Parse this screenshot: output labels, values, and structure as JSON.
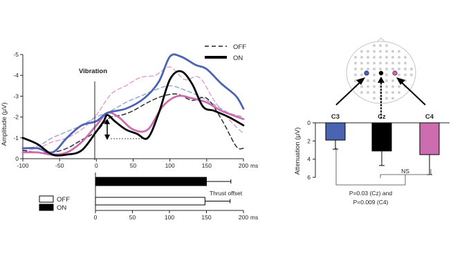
{
  "chart_data": [
    {
      "type": "line",
      "ylabel": "Amplitude (μV)",
      "x_unit": "ms",
      "xlim": [
        -100,
        200
      ],
      "ylim": [
        0,
        -5
      ],
      "y_inverted": true,
      "x_ticks": [
        "-100",
        "-50",
        "0",
        "50",
        "100",
        "150",
        "200"
      ],
      "y_ticks": [
        "0",
        "-1",
        "-2",
        "-3",
        "-4",
        "-5"
      ],
      "annotation": "Vibration",
      "legend": {
        "placement": "top-right",
        "entries": [
          "OFF",
          "ON"
        ]
      },
      "series": [
        {
          "name": "OFF",
          "color": "#222222",
          "style": "dashed",
          "x": [
            -100,
            -80,
            -60,
            -40,
            -20,
            0,
            10,
            20,
            35,
            50,
            70,
            90,
            110,
            130,
            150,
            170,
            190,
            200
          ],
          "y": [
            -0.4,
            -0.3,
            -0.3,
            -0.5,
            -0.9,
            -1.3,
            -1.7,
            -2.0,
            -2.1,
            -2.3,
            -2.7,
            -3.0,
            -3.1,
            -2.8,
            -2.9,
            -1.9,
            -0.6,
            -0.5
          ]
        },
        {
          "name": "ON",
          "color": "#000000",
          "style": "solid",
          "x": [
            -100,
            -80,
            -60,
            -40,
            -20,
            0,
            10,
            15,
            25,
            40,
            55,
            70,
            85,
            100,
            115,
            130,
            145,
            160,
            180,
            200
          ],
          "y": [
            -1.0,
            -0.7,
            -0.2,
            -0.2,
            -0.4,
            -1.3,
            -1.8,
            -2.1,
            -1.8,
            -1.4,
            -1.2,
            -1.0,
            -2.2,
            -3.8,
            -4.2,
            -3.6,
            -2.5,
            -2.3,
            -2.0,
            -1.6
          ]
        },
        {
          "name": "C3 OFF",
          "color": "#8fa3d8",
          "style": "dashed",
          "x": [
            -100,
            -80,
            -60,
            -40,
            -20,
            0,
            20,
            40,
            60,
            80,
            100,
            120,
            140,
            160,
            180,
            200
          ],
          "y": [
            -0.5,
            -0.6,
            -1.0,
            -1.3,
            -1.6,
            -2.0,
            -2.3,
            -2.7,
            -3.0,
            -3.3,
            -3.5,
            -3.3,
            -3.0,
            -2.6,
            -2.2,
            -2.0
          ]
        },
        {
          "name": "C3 ON",
          "color": "#4a64b2",
          "style": "solid",
          "x": [
            -100,
            -80,
            -65,
            -55,
            -40,
            -20,
            0,
            15,
            40,
            65,
            85,
            100,
            115,
            135,
            150,
            170,
            190,
            200
          ],
          "y": [
            -0.5,
            -0.5,
            -0.3,
            -0.4,
            -1.0,
            -1.6,
            -1.8,
            -2.2,
            -2.4,
            -2.9,
            -3.7,
            -4.9,
            -4.9,
            -4.5,
            -4.3,
            -3.6,
            -3.0,
            -2.4
          ]
        },
        {
          "name": "C4 OFF",
          "color": "#e59acb",
          "style": "dashed",
          "x": [
            -100,
            -80,
            -60,
            -40,
            -20,
            0,
            20,
            40,
            60,
            80,
            100,
            120,
            140,
            160,
            180,
            200
          ],
          "y": [
            -0.4,
            -0.5,
            -0.8,
            -1.0,
            -1.4,
            -2.1,
            -3.1,
            -3.5,
            -3.9,
            -4.0,
            -4.4,
            -3.8,
            -3.9,
            -2.8,
            -1.9,
            -1.2
          ]
        },
        {
          "name": "C4 ON",
          "color": "#cc6db0",
          "style": "solid",
          "x": [
            -100,
            -80,
            -60,
            -40,
            -20,
            0,
            15,
            30,
            50,
            70,
            90,
            110,
            130,
            150,
            170,
            200
          ],
          "y": [
            -0.3,
            -0.3,
            -0.2,
            -0.3,
            -0.8,
            -1.6,
            -2.2,
            -2.0,
            -1.4,
            -1.4,
            -2.5,
            -3.0,
            -2.9,
            -2.7,
            -2.3,
            -1.9
          ]
        }
      ]
    },
    {
      "type": "bar",
      "orientation": "horizontal",
      "annotation": "Thrust offset",
      "x_unit": "ms",
      "xlim": [
        0,
        200
      ],
      "x_ticks": [
        "0",
        "50",
        "100",
        "150",
        "200"
      ],
      "legend": {
        "placement": "left",
        "entries": [
          "OFF",
          "ON"
        ]
      },
      "series": [
        {
          "name": "ON",
          "color": "#000000",
          "values": [
            150
          ],
          "error": [
            33
          ]
        },
        {
          "name": "OFF",
          "color": "#ffffff",
          "values": [
            148
          ],
          "error": [
            34
          ]
        }
      ]
    },
    {
      "type": "bar",
      "ylabel": "Attenuation (μV)",
      "ylim": [
        0,
        6
      ],
      "y_inverted": true,
      "y_ticks": [
        "0",
        "2",
        "4",
        "6"
      ],
      "categories": [
        "C3",
        "Cz",
        "C4"
      ],
      "colors": [
        "#4a64b2",
        "#000000",
        "#cc6db0"
      ],
      "values": [
        1.9,
        3.1,
        3.5
      ],
      "errors": [
        1.0,
        1.6,
        2.2
      ],
      "annotations": [
        "NS",
        "P=0.03 (Cz) and",
        "P=0.009 (C4)"
      ]
    }
  ]
}
